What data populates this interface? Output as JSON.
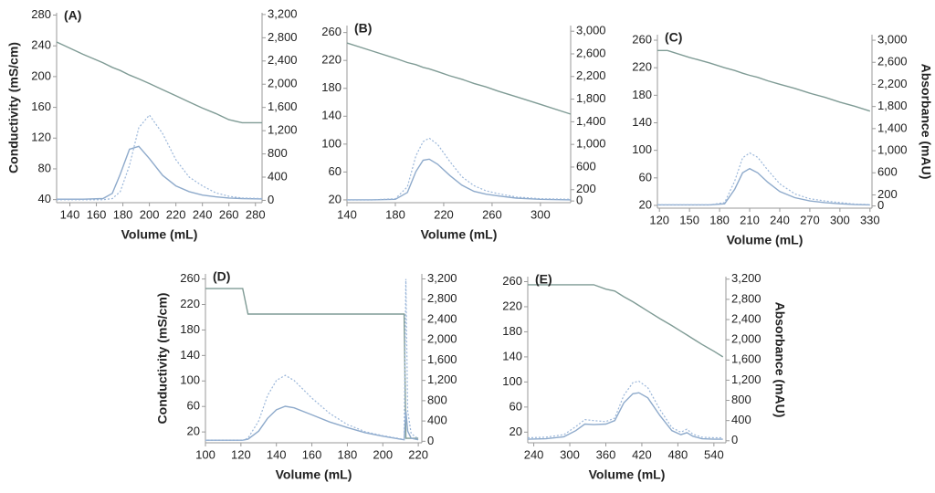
{
  "chart_data": [
    {
      "type": "line",
      "label": "(A)",
      "xlabel": "Volume (mL)",
      "ylabel": "Conductivity (mS/cm)",
      "xlim": [
        130,
        285
      ],
      "xticks": [
        140,
        160,
        180,
        200,
        220,
        240,
        260,
        280
      ],
      "ylim": [
        36,
        283
      ],
      "yticks": [
        40,
        80,
        120,
        160,
        200,
        240,
        280
      ],
      "y2lim": [
        -40,
        3230
      ],
      "y2ticks": [
        0,
        400,
        800,
        {
          "value": 1200,
          "label": "1,200"
        },
        {
          "value": 1600,
          "label": "1,600"
        },
        {
          "value": 2000,
          "label": "2,000"
        },
        {
          "value": 2400,
          "label": "2,400"
        },
        {
          "value": 2800,
          "label": "2,800"
        },
        {
          "value": 3200,
          "label": "3,200"
        }
      ],
      "x": [
        130,
        150,
        165,
        172,
        178,
        185,
        192,
        200,
        210,
        220,
        230,
        240,
        250,
        260,
        270,
        285
      ],
      "series": [
        {
          "color": "#7f9b95",
          "values": [
            245,
            229,
            218,
            212,
            208,
            202,
            197,
            191,
            183,
            175,
            167,
            159,
            152,
            144,
            140,
            140
          ]
        },
        {
          "color": "#8eaacb",
          "axis": "y2",
          "values": [
            20,
            20,
            30,
            120,
            450,
            880,
            930,
            720,
            430,
            250,
            150,
            90,
            60,
            40,
            30,
            25
          ]
        },
        {
          "color": "#9bb7da",
          "axis": "y2",
          "dashed": true,
          "values": [
            10,
            10,
            10,
            30,
            150,
            600,
            1250,
            1470,
            1150,
            700,
            400,
            250,
            130,
            70,
            40,
            30
          ]
        }
      ]
    },
    {
      "type": "line",
      "label": "(B)",
      "xlabel": "Volume (mL)",
      "xlim": [
        140,
        325
      ],
      "xticks": [
        140,
        180,
        220,
        260,
        300
      ],
      "ylim": [
        16,
        270
      ],
      "yticks": [
        20,
        60,
        100,
        140,
        180,
        220,
        260
      ],
      "y2lim": [
        -30,
        3100
      ],
      "y2ticks": [
        0,
        200,
        600,
        {
          "value": 1000,
          "label": "1,000"
        },
        {
          "value": 1400,
          "label": "1,400"
        },
        {
          "value": 1800,
          "label": "1,800"
        },
        {
          "value": 2200,
          "label": "2,200"
        },
        {
          "value": 2600,
          "label": "2,600"
        },
        {
          "value": 3000,
          "label": "3,000"
        }
      ],
      "x": [
        140,
        160,
        180,
        190,
        197,
        203,
        208,
        215,
        225,
        235,
        245,
        255,
        265,
        280,
        300,
        325
      ],
      "series": [
        {
          "color": "#7f9b95",
          "values": [
            245,
            234,
            223,
            217,
            214,
            210,
            208,
            204,
            198,
            193,
            187,
            182,
            176,
            168,
            157,
            143
          ]
        },
        {
          "color": "#8eaacb",
          "axis": "y2",
          "values": [
            20,
            20,
            30,
            150,
            520,
            720,
            740,
            650,
            450,
            280,
            170,
            120,
            90,
            50,
            30,
            20
          ]
        },
        {
          "color": "#9bb7da",
          "axis": "y2",
          "dashed": true,
          "values": [
            20,
            20,
            40,
            250,
            800,
            1050,
            1110,
            1000,
            700,
            430,
            270,
            180,
            130,
            70,
            40,
            30
          ]
        }
      ]
    },
    {
      "type": "line",
      "label": "(C)",
      "xlabel": "Volume (mL)",
      "y2label": "Absorbance (mAU)",
      "xlim": [
        118,
        332
      ],
      "xticks": [
        120,
        150,
        180,
        210,
        240,
        270,
        300,
        330
      ],
      "ylim": [
        16,
        268
      ],
      "yticks": [
        20,
        60,
        100,
        140,
        180,
        220,
        260
      ],
      "y2lim": [
        -40,
        3100
      ],
      "y2ticks": [
        0,
        200,
        600,
        {
          "value": 1000,
          "label": "1,000"
        },
        {
          "value": 1400,
          "label": "1,400"
        },
        {
          "value": 1800,
          "label": "1,800"
        },
        {
          "value": 2200,
          "label": "2,200"
        },
        {
          "value": 2600,
          "label": "2,600"
        },
        {
          "value": 3000,
          "label": "3,000"
        }
      ],
      "x": [
        118,
        128,
        150,
        170,
        185,
        195,
        203,
        210,
        218,
        228,
        240,
        255,
        270,
        285,
        300,
        315,
        330
      ],
      "series": [
        {
          "color": "#7f9b95",
          "values": [
            245,
            245,
            235,
            227,
            220,
            216,
            212,
            209,
            206,
            201,
            196,
            190,
            183,
            177,
            170,
            164,
            157
          ]
        },
        {
          "color": "#8eaacb",
          "axis": "y2",
          "values": [
            20,
            20,
            20,
            20,
            40,
            300,
            600,
            675,
            600,
            430,
            260,
            150,
            90,
            60,
            40,
            25,
            20
          ]
        },
        {
          "color": "#9bb7da",
          "axis": "y2",
          "dashed": true,
          "values": [
            20,
            20,
            20,
            20,
            60,
            450,
            870,
            960,
            880,
            650,
            400,
            220,
            130,
            90,
            60,
            35,
            25
          ]
        }
      ]
    },
    {
      "type": "line",
      "label": "(D)",
      "xlabel": "Volume (mL)",
      "ylabel": "Conductivity (mS/cm)",
      "xlim": [
        100,
        222
      ],
      "xticks": [
        100,
        120,
        140,
        160,
        180,
        200,
        220
      ],
      "ylim": [
        3,
        268
      ],
      "yticks": [
        20,
        60,
        100,
        140,
        180,
        220,
        260
      ],
      "y2lim": [
        -30,
        3300
      ],
      "y2ticks": [
        0,
        400,
        800,
        {
          "value": 1200,
          "label": "1,200"
        },
        {
          "value": 1600,
          "label": "1,600"
        },
        {
          "value": 2000,
          "label": "2,000"
        },
        {
          "value": 2400,
          "label": "2,400"
        },
        {
          "value": 2800,
          "label": "2,800"
        },
        {
          "value": 3200,
          "label": "3,200"
        }
      ],
      "x": [
        100,
        120,
        121,
        124,
        130,
        135,
        140,
        145,
        150,
        160,
        170,
        180,
        190,
        200,
        210,
        212,
        213,
        214,
        216,
        220
      ],
      "series": [
        {
          "color": "#7f9b95",
          "values": [
            245,
            245,
            245,
            205,
            205,
            205,
            205,
            205,
            205,
            205,
            205,
            205,
            205,
            205,
            205,
            205,
            10,
            10,
            10,
            10
          ]
        },
        {
          "color": "#8eaacb",
          "axis": "y2",
          "values": [
            20,
            20,
            20,
            40,
            200,
            450,
            620,
            690,
            660,
            520,
            380,
            270,
            170,
            100,
            40,
            30,
            600,
            200,
            60,
            30
          ]
        },
        {
          "color": "#9bb7da",
          "axis": "y2",
          "dashed": true,
          "values": [
            20,
            20,
            20,
            60,
            400,
            900,
            1200,
            1300,
            1200,
            850,
            550,
            330,
            190,
            110,
            50,
            40,
            3200,
            600,
            150,
            50
          ]
        }
      ]
    },
    {
      "type": "line",
      "label": "(E)",
      "xlabel": "Volume (mL)",
      "y2label": "Absorbance (mAU)",
      "xlim": [
        230,
        560
      ],
      "xticks": [
        240,
        300,
        360,
        420,
        480,
        540
      ],
      "ylim": [
        3,
        268
      ],
      "yticks": [
        20,
        60,
        100,
        140,
        180,
        220,
        260
      ],
      "y2lim": [
        -40,
        3250
      ],
      "y2ticks": [
        0,
        400,
        800,
        {
          "value": 1200,
          "label": "1,200"
        },
        {
          "value": 1600,
          "label": "1,600"
        },
        {
          "value": 2000,
          "label": "2,000"
        },
        {
          "value": 2400,
          "label": "2,400"
        },
        {
          "value": 2800,
          "label": "2,800"
        },
        {
          "value": 3200,
          "label": "3,200"
        }
      ],
      "x": [
        230,
        260,
        290,
        310,
        325,
        340,
        360,
        375,
        390,
        405,
        415,
        430,
        450,
        470,
        485,
        495,
        505,
        520,
        540,
        555
      ],
      "series": [
        {
          "color": "#7f9b95",
          "values": [
            255,
            255,
            255,
            255,
            255,
            255,
            248,
            245,
            236,
            228,
            222,
            213,
            201,
            190,
            181,
            175,
            169,
            160,
            149,
            140
          ]
        },
        {
          "color": "#8eaacb",
          "axis": "y2",
          "values": [
            30,
            40,
            80,
            200,
            330,
            320,
            330,
            400,
            750,
            930,
            950,
            850,
            500,
            200,
            120,
            160,
            90,
            40,
            30,
            30
          ]
        },
        {
          "color": "#9bb7da",
          "axis": "y2",
          "dashed": true,
          "values": [
            60,
            70,
            120,
            280,
            420,
            400,
            380,
            450,
            900,
            1150,
            1180,
            1050,
            620,
            260,
            170,
            230,
            130,
            70,
            60,
            60
          ]
        }
      ]
    }
  ]
}
